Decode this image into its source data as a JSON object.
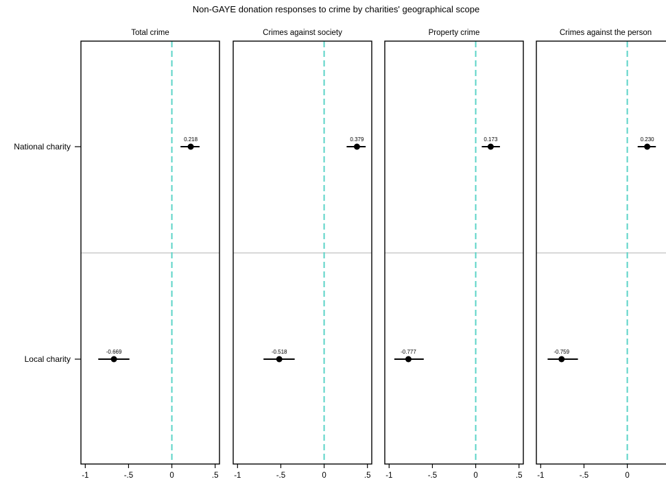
{
  "chart_data": {
    "type": "scatter",
    "title": "Non-GAYE donation responses to crime by charities' geographical scope",
    "categories": [
      "National charity",
      "Local charity"
    ],
    "x_ticks": [
      -1,
      -0.5,
      0,
      0.5
    ],
    "x_tick_labels": [
      "-1",
      "-.5",
      "0",
      ".5"
    ],
    "xlim": [
      -1.05,
      0.55
    ],
    "reference_line": 0,
    "reference_line_color": "#5bd3c7",
    "point_color": "#000000",
    "panels": [
      {
        "title": "Total crime",
        "points": [
          {
            "category": "National charity",
            "value": 0.218,
            "label": "0.218",
            "ci": [
              0.1,
              0.32
            ]
          },
          {
            "category": "Local charity",
            "value": -0.669,
            "label": "-0.669",
            "ci": [
              -0.85,
              -0.49
            ]
          }
        ]
      },
      {
        "title": "Crimes against society",
        "points": [
          {
            "category": "National charity",
            "value": 0.379,
            "label": "0.379",
            "ci": [
              0.26,
              0.48
            ]
          },
          {
            "category": "Local charity",
            "value": -0.518,
            "label": "-0.518",
            "ci": [
              -0.7,
              -0.34
            ]
          }
        ]
      },
      {
        "title": "Property crime",
        "points": [
          {
            "category": "National charity",
            "value": 0.173,
            "label": "0.173",
            "ci": [
              0.07,
              0.28
            ]
          },
          {
            "category": "Local charity",
            "value": -0.777,
            "label": "-0.777",
            "ci": [
              -0.94,
              -0.6
            ]
          }
        ]
      },
      {
        "title": "Crimes against the person",
        "points": [
          {
            "category": "National charity",
            "value": 0.23,
            "label": "0.230",
            "ci": [
              0.12,
              0.33
            ]
          },
          {
            "category": "Local charity",
            "value": -0.759,
            "label": "-0.759",
            "ci": [
              -0.92,
              -0.57
            ]
          }
        ]
      }
    ]
  }
}
